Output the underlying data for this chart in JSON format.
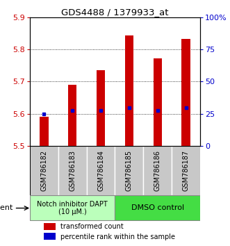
{
  "title": "GDS4488 / 1379933_at",
  "samples": [
    "GSM786182",
    "GSM786183",
    "GSM786184",
    "GSM786185",
    "GSM786186",
    "GSM786187"
  ],
  "bar_values": [
    5.59,
    5.69,
    5.735,
    5.843,
    5.773,
    5.833
  ],
  "blue_marker_values": [
    5.6,
    5.61,
    5.61,
    5.618,
    5.61,
    5.618
  ],
  "ylim_left": [
    5.5,
    5.9
  ],
  "ylim_right": [
    0,
    100
  ],
  "yticks_left": [
    5.5,
    5.6,
    5.7,
    5.8,
    5.9
  ],
  "yticks_right": [
    0,
    25,
    50,
    75,
    100
  ],
  "ytick_labels_right": [
    "0",
    "25",
    "50",
    "75",
    "100%"
  ],
  "bar_color": "#cc0000",
  "blue_color": "#0000cc",
  "group1_label": "Notch inhibitor DAPT\n(10 μM.)",
  "group2_label": "DMSO control",
  "group1_color": "#bbffbb",
  "group2_color": "#44dd44",
  "agent_label": "agent",
  "legend_bar_label": "transformed count",
  "legend_dot_label": "percentile rank within the sample",
  "bar_bottom": 5.5,
  "background_color": "#ffffff",
  "xlabel_bg": "#c8c8c8",
  "bar_width": 0.3
}
